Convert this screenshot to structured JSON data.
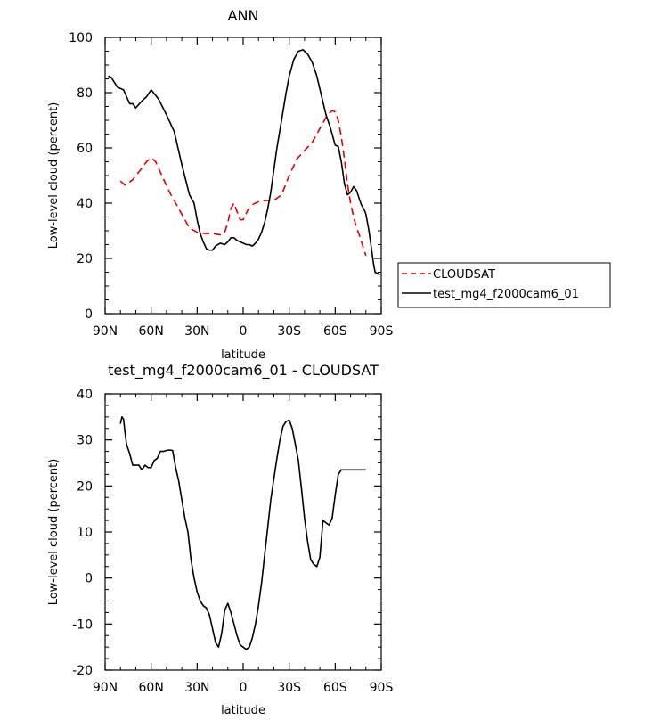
{
  "chart_data": [
    {
      "type": "line",
      "title": "ANN",
      "xlabel": "latitude",
      "ylabel": "Low-level cloud (percent)",
      "xlim": [
        90,
        -90
      ],
      "ylim": [
        0,
        100
      ],
      "x_ticks": [
        90,
        60,
        30,
        0,
        -30,
        -60,
        -90
      ],
      "x_tick_labels": [
        "90N",
        "60N",
        "30N",
        "0",
        "30S",
        "60S",
        "90S"
      ],
      "y_ticks": [
        0,
        20,
        40,
        60,
        80,
        100
      ],
      "y_tick_labels": [
        "0",
        "20",
        "40",
        "60",
        "80",
        "100"
      ],
      "legend_position": "outside-right",
      "series": [
        {
          "name": "CLOUDSAT",
          "color": "#e00000",
          "style": "dashed",
          "x": [
            80,
            77,
            72,
            67,
            63,
            60,
            57,
            53,
            48,
            44,
            40,
            35,
            30,
            25,
            20,
            15,
            12,
            10,
            8,
            6,
            4,
            2,
            0,
            -3,
            -6,
            -10,
            -15,
            -20,
            -25,
            -30,
            -35,
            -40,
            -45,
            -50,
            -55,
            -58,
            -60,
            -62,
            -64,
            -66,
            -68,
            -70,
            -72,
            -74,
            -76,
            -78,
            -80
          ],
          "y": [
            48,
            46.5,
            48.5,
            52,
            55,
            56.5,
            55,
            50,
            44,
            40,
            36,
            31,
            29.5,
            29,
            29,
            28.5,
            29.5,
            33,
            38,
            40,
            37,
            34,
            34,
            37.5,
            39.5,
            40.5,
            41,
            41,
            43,
            50,
            56,
            59,
            62,
            67,
            72,
            73.5,
            73,
            70,
            64,
            56,
            47,
            40,
            35,
            31,
            28,
            24.5,
            21
          ]
        },
        {
          "name": "test_mg4_f2000cam6_01",
          "color": "#000000",
          "style": "solid",
          "x": [
            88,
            86,
            82,
            78,
            76,
            74,
            72,
            70,
            66,
            63,
            60,
            57,
            55,
            50,
            45,
            40,
            35,
            32,
            30,
            28,
            26,
            24,
            22,
            20,
            18,
            15,
            12,
            10,
            8,
            6,
            4,
            2,
            0,
            -2,
            -4,
            -6,
            -8,
            -10,
            -12,
            -14,
            -16,
            -18,
            -20,
            -22,
            -25,
            -28,
            -30,
            -33,
            -36,
            -39,
            -42,
            -45,
            -48,
            -51,
            -54,
            -57,
            -60,
            -62,
            -64,
            -66,
            -68,
            -70,
            -71,
            -72,
            -74,
            -76,
            -77,
            -79,
            -80,
            -82,
            -84,
            -85,
            -86,
            -88,
            -89
          ],
          "y": [
            86,
            85.5,
            82,
            81,
            78.5,
            76,
            76,
            74.5,
            77,
            78.5,
            81,
            79,
            77.5,
            72,
            66,
            54,
            43,
            40,
            34,
            29,
            26,
            23.5,
            23,
            23,
            24.5,
            25.5,
            25,
            26,
            27.5,
            27.5,
            26.5,
            26,
            25.5,
            25,
            25,
            24.5,
            25.5,
            27,
            29.5,
            33,
            38,
            44,
            52,
            60,
            70,
            80,
            86,
            92,
            95,
            95.5,
            94,
            91,
            86,
            79,
            72,
            67,
            61,
            60.5,
            55,
            47,
            43,
            44,
            45,
            46,
            44.5,
            41,
            39.5,
            37.5,
            36,
            30,
            22,
            18,
            15,
            14.5,
            14
          ]
        }
      ]
    },
    {
      "type": "line",
      "title": "test_mg4_f2000cam6_01 - CLOUDSAT",
      "xlabel": "latitude",
      "ylabel": "Low-level cloud (percent)",
      "xlim": [
        90,
        -90
      ],
      "ylim": [
        -20,
        40
      ],
      "x_ticks": [
        90,
        60,
        30,
        0,
        -30,
        -60,
        -90
      ],
      "x_tick_labels": [
        "90N",
        "60N",
        "30N",
        "0",
        "30S",
        "60S",
        "90S"
      ],
      "y_ticks": [
        -20,
        -10,
        0,
        10,
        20,
        30,
        40
      ],
      "y_tick_labels": [
        "-20",
        "-10",
        "0",
        "10",
        "20",
        "30",
        "40"
      ],
      "series": [
        {
          "name": "",
          "color": "#000000",
          "style": "solid",
          "x": [
            80,
            79,
            78,
            77,
            76,
            74,
            72,
            70,
            68,
            66,
            64,
            62,
            60,
            58,
            56,
            54,
            52,
            50,
            48,
            46,
            44,
            42,
            40,
            38,
            36,
            34,
            32,
            30,
            28,
            26,
            24,
            22,
            20,
            18,
            16,
            14,
            12,
            10,
            8,
            6,
            4,
            2,
            0,
            -2,
            -4,
            -6,
            -8,
            -10,
            -12,
            -14,
            -16,
            -18,
            -20,
            -22,
            -24,
            -26,
            -28,
            -30,
            -32,
            -34,
            -36,
            -38,
            -40,
            -42,
            -44,
            -46,
            -48,
            -50,
            -52,
            -54,
            -56,
            -58,
            -60,
            -62,
            -64,
            -66,
            -67,
            -68,
            -70,
            -72,
            -74,
            -76,
            -78,
            -80
          ],
          "y": [
            33.5,
            35,
            34.5,
            31.5,
            29,
            27,
            24.5,
            24.5,
            24.5,
            23.5,
            24.5,
            24,
            24,
            25.5,
            26,
            27.5,
            27.5,
            27.7,
            27.8,
            27.7,
            24,
            21,
            17,
            13,
            10,
            4,
            0,
            -3,
            -5,
            -6,
            -6.5,
            -8,
            -11,
            -14,
            -15,
            -12,
            -7,
            -5.5,
            -7.5,
            -10,
            -12.5,
            -14.5,
            -15,
            -15.5,
            -15,
            -13,
            -10,
            -6,
            -1,
            5,
            11,
            17,
            21.5,
            26,
            30,
            33,
            34,
            34.3,
            32.5,
            29,
            25.5,
            19.5,
            13,
            8,
            4,
            3,
            2.5,
            4.5,
            12.5,
            12,
            11.5,
            13,
            18,
            22.5,
            23.5,
            23.5,
            23.5,
            23.5,
            23.5,
            23.5,
            23.5,
            23.5,
            23.5,
            23.5
          ]
        }
      ]
    }
  ]
}
